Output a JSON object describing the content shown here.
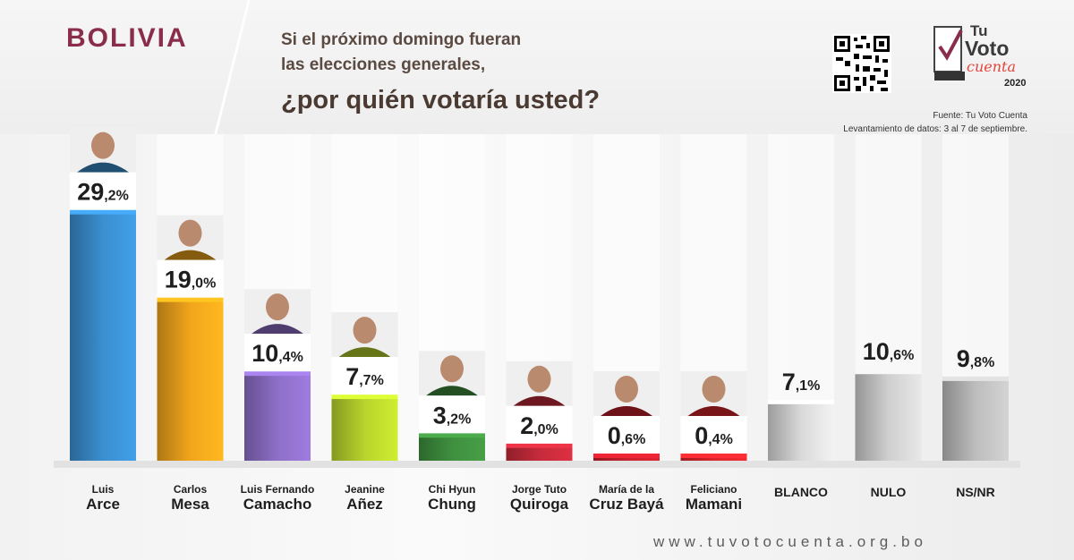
{
  "header": {
    "country": "BOLIVIA",
    "question_line1": "Si el próximo domingo fueran",
    "question_line2": "las elecciones generales,",
    "question_main": "¿por quién votaría usted?",
    "source": "Fuente: Tu Voto Cuenta",
    "fieldwork": "Levantamiento de datos: 3 al 7 de septiembre.",
    "logo": {
      "name": "tu-voto-cuenta-logo",
      "text_tu": "Tu",
      "text_voto": "Voto",
      "text_cuenta": "cuenta",
      "year": "2020"
    }
  },
  "footer": {
    "website": "www.tuvotocuenta.org.bo"
  },
  "colors": {
    "brand": "#8a2d4b",
    "arce": "#3a8fd0",
    "mesa": "#f2a51c",
    "camacho": "#8e6fc8",
    "anez": "#b9d42c",
    "chung": "#3f8f3f",
    "quiroga": "#c62b3b",
    "baya": "#c8202e",
    "mamani": "#d9262c",
    "blanco": "#d9d9d9",
    "nulo": "#cfcfcf",
    "nsnr": "#bdbdbd"
  },
  "chart_data": {
    "type": "bar",
    "categories": [
      "Luis Arce",
      "Carlos Mesa",
      "Luis Fernando Camacho",
      "Jeanine Añez",
      "Chi Hyun Chung",
      "Jorge Tuto Quiroga",
      "María de la Cruz Bayá",
      "Feliciano Mamani",
      "BLANCO",
      "NULO",
      "NS/NR"
    ],
    "labels": [
      {
        "line1": "Luis",
        "line2": "Arce"
      },
      {
        "line1": "Carlos",
        "line2": "Mesa"
      },
      {
        "line1": "Luis Fernando",
        "line2": "Camacho"
      },
      {
        "line1": "Jeanine",
        "line2": "Añez"
      },
      {
        "line1": "Chi Hyun",
        "line2": "Chung"
      },
      {
        "line1": "Jorge Tuto",
        "line2": "Quiroga"
      },
      {
        "line1": "María de la",
        "line2": "Cruz Bayá"
      },
      {
        "line1": "Feliciano",
        "line2": "Mamani"
      },
      {
        "line1": "",
        "line2": "BLANCO"
      },
      {
        "line1": "",
        "line2": "NULO"
      },
      {
        "line1": "",
        "line2": "NS/NR"
      }
    ],
    "values": [
      29.2,
      19.0,
      10.4,
      7.7,
      3.2,
      2.0,
      0.6,
      0.4,
      7.1,
      10.6,
      9.8
    ],
    "value_labels": [
      {
        "int": "29",
        "dec": ",2%"
      },
      {
        "int": "19",
        "dec": ",0%"
      },
      {
        "int": "10",
        "dec": ",4%"
      },
      {
        "int": "7",
        "dec": ",7%"
      },
      {
        "int": "3",
        "dec": ",2%"
      },
      {
        "int": "2",
        "dec": ",0%"
      },
      {
        "int": "0",
        "dec": ",6%"
      },
      {
        "int": "0",
        "dec": ",4%"
      },
      {
        "int": "7",
        "dec": ",1%"
      },
      {
        "int": "10",
        "dec": ",6%"
      },
      {
        "int": "9",
        "dec": ",8%"
      }
    ],
    "portraits": [
      true,
      true,
      true,
      true,
      true,
      true,
      true,
      true,
      false,
      false,
      false
    ],
    "bar_colors": [
      "#3a8fd0",
      "#f2a51c",
      "#8e6fc8",
      "#b9d42c",
      "#3f8f3f",
      "#c62b3b",
      "#c8202e",
      "#d9262c",
      "#d9d9d9",
      "#cfcfcf",
      "#bdbdbd"
    ],
    "ylim": [
      0,
      30
    ],
    "grid": false,
    "legend": "none"
  }
}
